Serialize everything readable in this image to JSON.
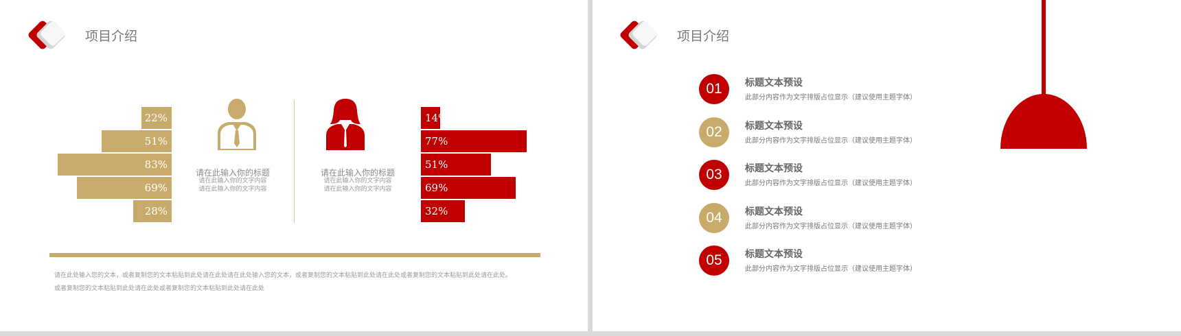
{
  "colors": {
    "gold": "#c8ab6a",
    "red": "#c00000",
    "text_gray": "#777777"
  },
  "left": {
    "title": "项目介绍",
    "male": {
      "icon": "male-person-icon",
      "title": "请在此输入你的标题",
      "desc1": "请在此输入你的文字内容",
      "desc2": "请在此输入你的文字内容"
    },
    "female": {
      "icon": "female-person-icon",
      "title": "请在此输入你的标题",
      "desc1": "请在此输入你的文字内容",
      "desc2": "请在此输入你的文字内容"
    },
    "gold_bars": [
      {
        "label": "22%",
        "value": 22
      },
      {
        "label": "51%",
        "value": 51
      },
      {
        "label": "83%",
        "value": 83
      },
      {
        "label": "69%",
        "value": 69
      },
      {
        "label": "28%",
        "value": 28
      }
    ],
    "red_bars": [
      {
        "label": "14%",
        "value": 14
      },
      {
        "label": "77%",
        "value": 77
      },
      {
        "label": "51%",
        "value": 51
      },
      {
        "label": "69%",
        "value": 69
      },
      {
        "label": "32%",
        "value": 32
      }
    ],
    "bottom_text_1": "请在此处输入您的文本，或者复制您的文本粘贴到此处请在此处请在此处输入您的文本，或者复制您的文本粘贴到此处请在此处或者复制您的文本粘贴到此处请在此处。",
    "bottom_text_2": "或者复制您的文本粘贴到此处请在此处或者复制您的文本粘贴到此处请在此处"
  },
  "right": {
    "title": "项目介绍",
    "items": [
      {
        "number": "01",
        "title": "标题文本预设",
        "desc": "此部分内容作为文字排版占位显示（建议使用主题字体）",
        "color": "red"
      },
      {
        "number": "02",
        "title": "标题文本预设",
        "desc": "此部分内容作为文字排版占位显示（建议使用主题字体）",
        "color": "gold"
      },
      {
        "number": "03",
        "title": "标题文本预设",
        "desc": "此部分内容作为文字排版占位显示（建议使用主题字体）",
        "color": "red"
      },
      {
        "number": "04",
        "title": "标题文本预设",
        "desc": "此部分内容作为文字排版占位显示（建议使用主题字体）",
        "color": "gold"
      },
      {
        "number": "05",
        "title": "标题文本预设",
        "desc": "此部分内容作为文字排版占位显示（建议使用主题字体）",
        "color": "red"
      }
    ]
  }
}
